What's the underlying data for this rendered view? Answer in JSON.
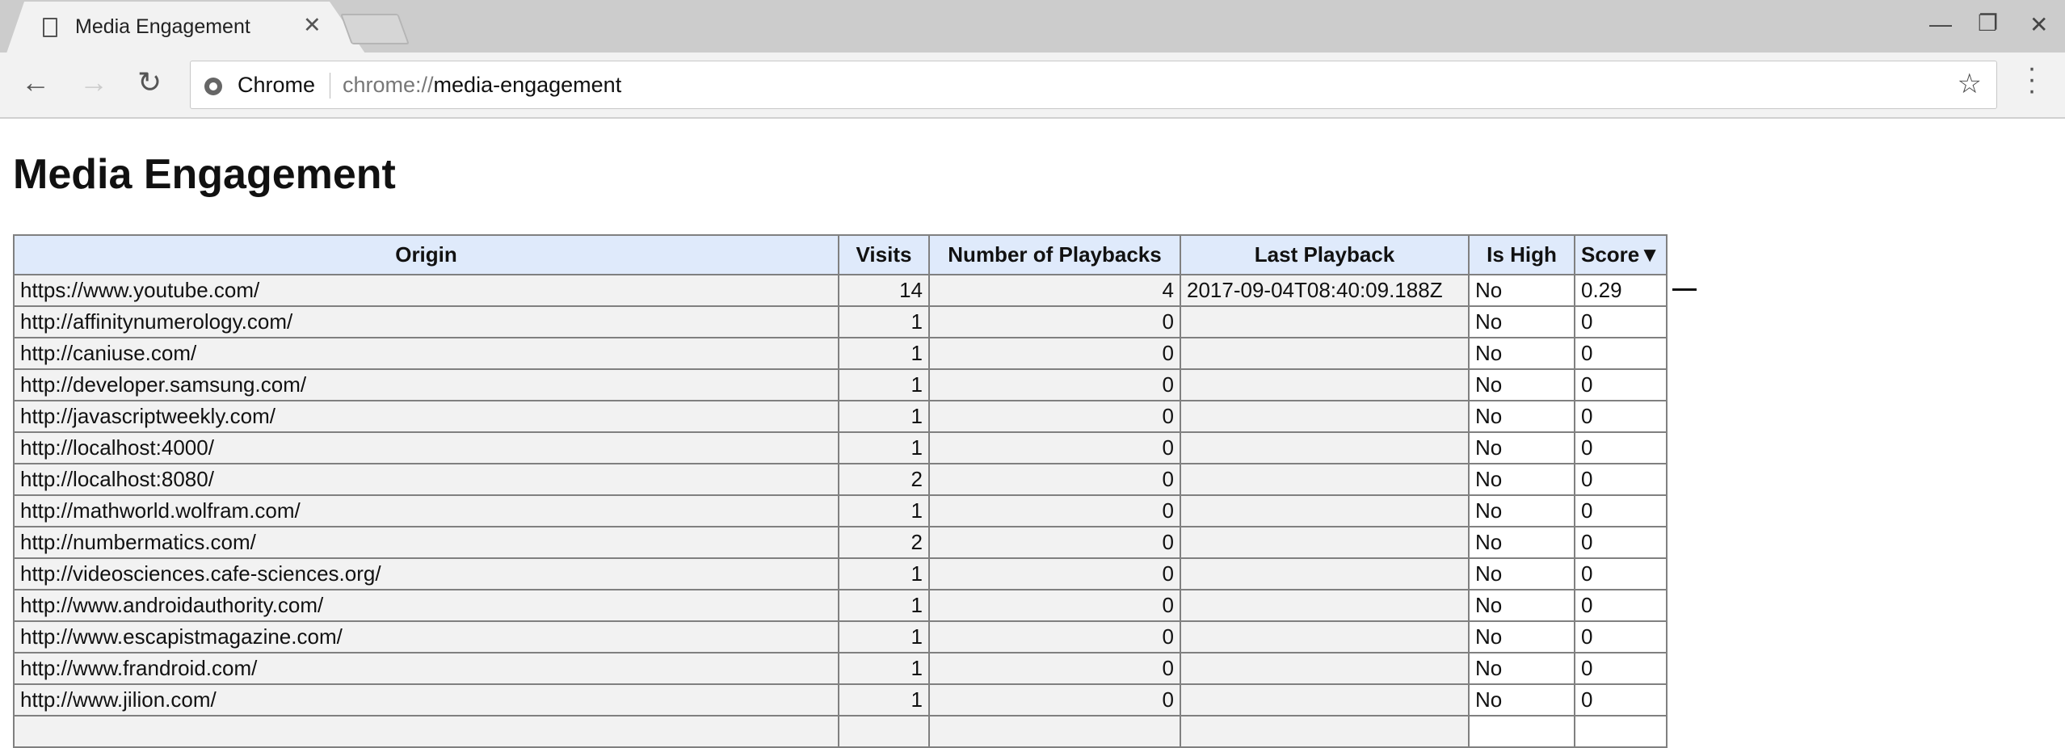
{
  "browser": {
    "tab_title": "Media Engagement",
    "chip": "Chrome",
    "url_scheme": "chrome://",
    "url_rest": "media-engagement"
  },
  "page": {
    "title": "Media Engagement"
  },
  "table": {
    "headers": [
      "Origin",
      "Visits",
      "Number of Playbacks",
      "Last Playback",
      "Is High",
      "Score▼"
    ],
    "rows": [
      [
        "https://www.youtube.com/",
        "14",
        "4",
        "2017-09-04T08:40:09.188Z",
        "No",
        "0.29"
      ],
      [
        "http://affinitynumerology.com/",
        "1",
        "0",
        "",
        "No",
        "0"
      ],
      [
        "http://caniuse.com/",
        "1",
        "0",
        "",
        "No",
        "0"
      ],
      [
        "http://developer.samsung.com/",
        "1",
        "0",
        "",
        "No",
        "0"
      ],
      [
        "http://javascriptweekly.com/",
        "1",
        "0",
        "",
        "No",
        "0"
      ],
      [
        "http://localhost:4000/",
        "1",
        "0",
        "",
        "No",
        "0"
      ],
      [
        "http://localhost:8080/",
        "2",
        "0",
        "",
        "No",
        "0"
      ],
      [
        "http://mathworld.wolfram.com/",
        "1",
        "0",
        "",
        "No",
        "0"
      ],
      [
        "http://numbermatics.com/",
        "2",
        "0",
        "",
        "No",
        "0"
      ],
      [
        "http://videosciences.cafe-sciences.org/",
        "1",
        "0",
        "",
        "No",
        "0"
      ],
      [
        "http://www.androidauthority.com/",
        "1",
        "0",
        "",
        "No",
        "0"
      ],
      [
        "http://www.escapistmagazine.com/",
        "1",
        "0",
        "",
        "No",
        "0"
      ],
      [
        "http://www.frandroid.com/",
        "1",
        "0",
        "",
        "No",
        "0"
      ],
      [
        "http://www.jilion.com/",
        "1",
        "0",
        "",
        "No",
        "0"
      ],
      [
        "",
        "",
        "",
        "",
        "",
        ""
      ]
    ]
  }
}
